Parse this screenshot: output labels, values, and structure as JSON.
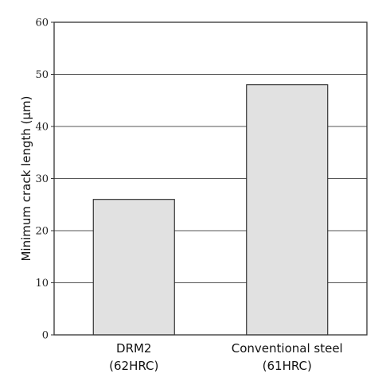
{
  "chart_data": {
    "type": "bar",
    "categories": [
      {
        "line1": "DRM2",
        "line2": "(62HRC)"
      },
      {
        "line1": "Conventional steel",
        "line2": "(61HRC)"
      }
    ],
    "values": [
      26,
      48
    ],
    "ylabel": "Minimum crack length (μm)",
    "xlabel": "",
    "title": "",
    "ylim": [
      0,
      60
    ],
    "yticks": [
      0,
      10,
      20,
      30,
      40,
      50,
      60
    ],
    "grid": true,
    "bar_color": "#e1e1e1",
    "bar_edge_color": "#222222"
  }
}
